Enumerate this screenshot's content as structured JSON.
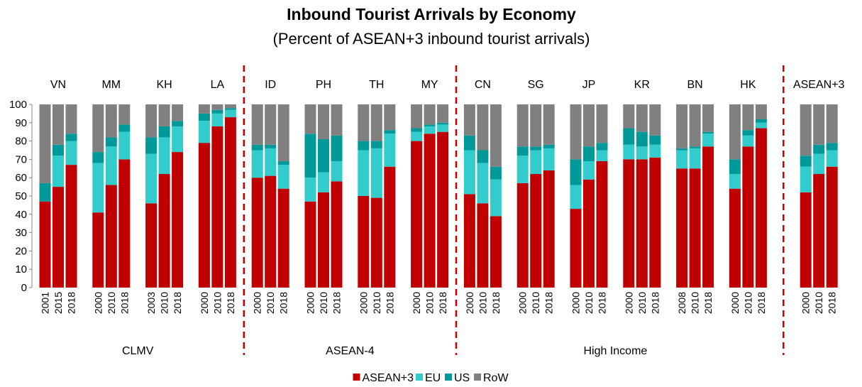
{
  "chart_data": {
    "type": "stacked_bar",
    "title": "Inbound Tourist Arrivals by Economy",
    "subtitle": "(Percent of ASEAN+3 inbound tourist arrivals)",
    "regions": [
      {
        "label": "CLMV",
        "economies": [
          {
            "name": "VN",
            "years": [
              "2001",
              "2015",
              "2018"
            ]
          },
          {
            "name": "MM",
            "years": [
              "2000",
              "2010",
              "2018"
            ]
          },
          {
            "name": "KH",
            "years": [
              "2003",
              "2010",
              "2018"
            ]
          },
          {
            "name": "LA",
            "years": [
              "2000",
              "2010",
              "2018"
            ]
          }
        ]
      },
      {
        "label": "ASEAN-4",
        "economies": [
          {
            "name": "ID",
            "years": [
              "2000",
              "2010",
              "2018"
            ]
          },
          {
            "name": "PH",
            "years": [
              "2000",
              "2010",
              "2018"
            ]
          },
          {
            "name": "TH",
            "years": [
              "2000",
              "2010",
              "2018"
            ]
          },
          {
            "name": "MY",
            "years": [
              "2000",
              "2010",
              "2018"
            ]
          }
        ]
      },
      {
        "label": "High Income",
        "economies": [
          {
            "name": "CN",
            "years": [
              "2000",
              "2010",
              "2018"
            ]
          },
          {
            "name": "SG",
            "years": [
              "2000",
              "2010",
              "2018"
            ]
          },
          {
            "name": "JP",
            "years": [
              "2000",
              "2010",
              "2018"
            ]
          },
          {
            "name": "KR",
            "years": [
              "2000",
              "2010",
              "2018"
            ]
          },
          {
            "name": "BN",
            "years": [
              "2008",
              "2010",
              "2018"
            ]
          },
          {
            "name": "HK",
            "years": [
              "2000",
              "2010",
              "2018"
            ]
          }
        ]
      },
      {
        "economies": [
          {
            "name": "ASEAN+3",
            "years": [
              "2000",
              "2010",
              "2018"
            ]
          }
        ]
      }
    ],
    "series": [
      {
        "name": "ASEAN+3",
        "color": "#c00000",
        "values": [
          47,
          55,
          67,
          41,
          56,
          70,
          46,
          62,
          74,
          79,
          88,
          93,
          60,
          61,
          54,
          47,
          52,
          58,
          50,
          49,
          66,
          80,
          84,
          85,
          51,
          46,
          39,
          57,
          62,
          64,
          43,
          59,
          69,
          70,
          70,
          71,
          65,
          65,
          77,
          54,
          77,
          87,
          52,
          62,
          66
        ]
      },
      {
        "name": "EU",
        "color": "#33cccc",
        "values": [
          0,
          17,
          13,
          27,
          21,
          15,
          27,
          20,
          14,
          12,
          7,
          4,
          15,
          15,
          13,
          13,
          11,
          11,
          25,
          27,
          18,
          5,
          4,
          4,
          24,
          22,
          20,
          15,
          13,
          12,
          13,
          10,
          6,
          8,
          7,
          7,
          10,
          11,
          7,
          8,
          6,
          3,
          14,
          11,
          9
        ]
      },
      {
        "name": "US",
        "color": "#009999",
        "values": [
          10,
          6,
          4,
          6,
          5,
          4,
          9,
          6,
          3,
          4,
          2,
          1,
          3,
          2,
          2,
          24,
          18,
          14,
          5,
          4,
          2,
          2,
          1,
          1,
          8,
          7,
          7,
          5,
          2,
          2,
          14,
          8,
          4,
          9,
          8,
          5,
          1,
          1,
          1,
          8,
          3,
          2,
          6,
          5,
          4
        ]
      },
      {
        "name": "RoW",
        "color": "#808080",
        "values": [
          43,
          22,
          16,
          26,
          18,
          11,
          18,
          12,
          9,
          5,
          3,
          2,
          22,
          22,
          31,
          16,
          19,
          17,
          20,
          20,
          14,
          13,
          11,
          10,
          17,
          25,
          34,
          23,
          23,
          22,
          30,
          23,
          21,
          13,
          15,
          17,
          24,
          23,
          15,
          30,
          14,
          8,
          28,
          22,
          21
        ]
      }
    ],
    "ylim": [
      0,
      100
    ],
    "yticks": [
      0,
      10,
      20,
      30,
      40,
      50,
      60,
      70,
      80,
      90,
      100
    ]
  }
}
